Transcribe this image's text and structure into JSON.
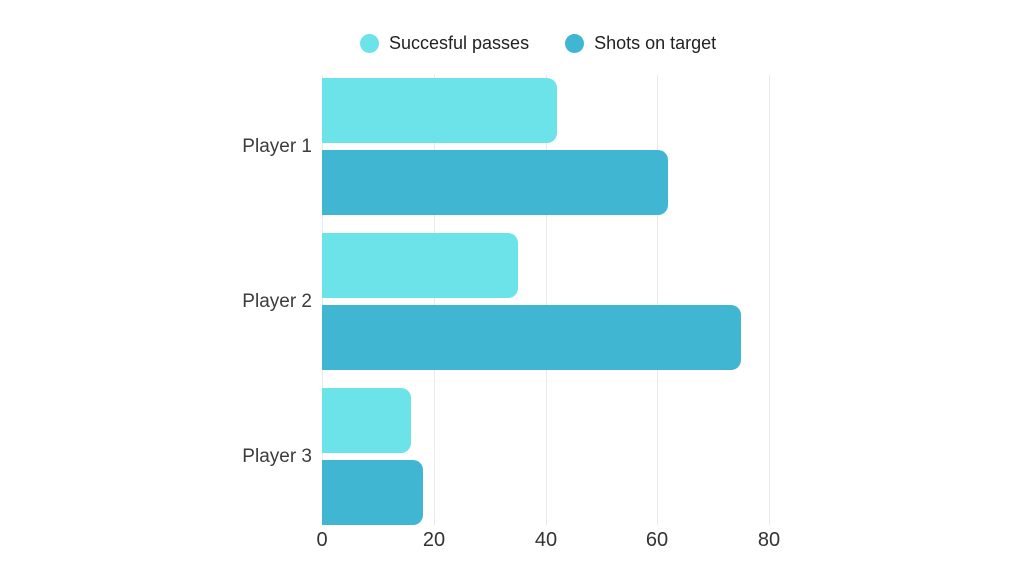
{
  "chart_data": {
    "type": "bar",
    "orientation": "horizontal",
    "categories": [
      "Player 1",
      "Player 2",
      "Player 3"
    ],
    "series": [
      {
        "name": "Succesful passes",
        "color": "#6BE3E8",
        "values": [
          42,
          35,
          16
        ]
      },
      {
        "name": "Shots on target",
        "color": "#40B6D3",
        "values": [
          62,
          75,
          18
        ]
      }
    ],
    "xlabel": "",
    "ylabel": "",
    "xlim": [
      0,
      80
    ],
    "xticks": [
      0,
      20,
      40,
      60,
      80
    ],
    "grid": true,
    "legend_position": "top",
    "background": "#ffffff",
    "gridline_color": "#e9e9e9"
  }
}
